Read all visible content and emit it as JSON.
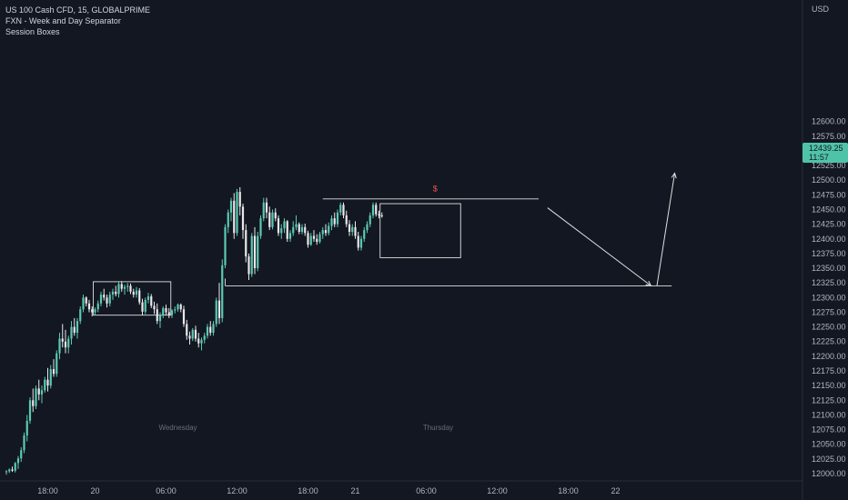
{
  "header": {
    "title": "US 100 Cash CFD, 15, GLOBALPRIME",
    "indicators": [
      "FXN - Week and Day Separator",
      "Session Boxes"
    ]
  },
  "colors": {
    "background": "#131722",
    "up": "#5cc9b2",
    "down": "#e8e8e8",
    "price_tag": "#4fc3a7",
    "text": "#b2b5be",
    "annotation": "#e0e0e0",
    "marker": "#f0524b"
  },
  "chart_data": {
    "type": "candlestick",
    "symbol": "US 100 Cash CFD",
    "interval": "15",
    "currency": "USD",
    "ylim": [
      11990,
      12650
    ],
    "y_ticks": [
      12000,
      12025,
      12050,
      12075,
      12100,
      12125,
      12150,
      12175,
      12200,
      12225,
      12250,
      12275,
      12300,
      12325,
      12350,
      12375,
      12400,
      12425,
      12450,
      12475,
      12500,
      12525,
      12550,
      12575,
      12600
    ],
    "y_tick_labels": [
      "12000.00",
      "12025.00",
      "12050.00",
      "12075.00",
      "12100.00",
      "12125.00",
      "12150.00",
      "12175.00",
      "12200.00",
      "12225.00",
      "12250.00",
      "12275.00",
      "12300.00",
      "12325.00",
      "12350.00",
      "12375.00",
      "12400.00",
      "12425.00",
      "12450.00",
      "12475.00",
      "12500.00",
      "12525.00",
      "12550.00",
      "12575.00",
      "12600.00"
    ],
    "x_ticks": [
      {
        "label": "18:00",
        "bar": 14
      },
      {
        "label": "20",
        "bar": 30
      },
      {
        "label": "06:00",
        "bar": 54
      },
      {
        "label": "12:00",
        "bar": 78
      },
      {
        "label": "18:00",
        "bar": 102
      },
      {
        "label": "21",
        "bar": 118
      },
      {
        "label": "06:00",
        "bar": 142
      },
      {
        "label": "12:00",
        "bar": 166
      },
      {
        "label": "18:00",
        "bar": 190
      },
      {
        "label": "22",
        "bar": 206
      }
    ],
    "day_labels": [
      {
        "label": "Wednesday",
        "bar": 58
      },
      {
        "label": "Thursday",
        "bar": 146
      }
    ],
    "last_price": "12439.25",
    "countdown": "11:57",
    "candles": [
      [
        12003,
        12006,
        11998,
        12004
      ],
      [
        12004,
        12009,
        12001,
        12007
      ],
      [
        12007,
        12012,
        12003,
        12005
      ],
      [
        12005,
        12020,
        12002,
        12018
      ],
      [
        12018,
        12030,
        12008,
        12026
      ],
      [
        12026,
        12045,
        12020,
        12040
      ],
      [
        12040,
        12070,
        12035,
        12065
      ],
      [
        12065,
        12100,
        12055,
        12090
      ],
      [
        12090,
        12130,
        12085,
        12125
      ],
      [
        12125,
        12145,
        12105,
        12115
      ],
      [
        12115,
        12150,
        12110,
        12145
      ],
      [
        12145,
        12160,
        12125,
        12135
      ],
      [
        12135,
        12150,
        12120,
        12142
      ],
      [
        12142,
        12165,
        12138,
        12160
      ],
      [
        12160,
        12180,
        12140,
        12150
      ],
      [
        12150,
        12185,
        12145,
        12178
      ],
      [
        12178,
        12195,
        12165,
        12170
      ],
      [
        12170,
        12210,
        12165,
        12205
      ],
      [
        12205,
        12240,
        12195,
        12230
      ],
      [
        12230,
        12255,
        12215,
        12225
      ],
      [
        12225,
        12245,
        12205,
        12215
      ],
      [
        12215,
        12235,
        12205,
        12230
      ],
      [
        12230,
        12260,
        12220,
        12250
      ],
      [
        12250,
        12265,
        12235,
        12240
      ],
      [
        12240,
        12265,
        12230,
        12260
      ],
      [
        12260,
        12285,
        12255,
        12280
      ],
      [
        12280,
        12305,
        12275,
        12300
      ],
      [
        12300,
        12302,
        12285,
        12290
      ],
      [
        12290,
        12296,
        12275,
        12280
      ],
      [
        12280,
        12285,
        12268,
        12275
      ],
      [
        12275,
        12283,
        12270,
        12280
      ],
      [
        12280,
        12295,
        12275,
        12290
      ],
      [
        12290,
        12310,
        12285,
        12305
      ],
      [
        12305,
        12315,
        12295,
        12300
      ],
      [
        12300,
        12305,
        12283,
        12290
      ],
      [
        12290,
        12310,
        12285,
        12305
      ],
      [
        12305,
        12315,
        12296,
        12310
      ],
      [
        12310,
        12320,
        12302,
        12306
      ],
      [
        12306,
        12328,
        12300,
        12323
      ],
      [
        12323,
        12328,
        12310,
        12315
      ],
      [
        12315,
        12322,
        12305,
        12318
      ],
      [
        12318,
        12325,
        12310,
        12320
      ],
      [
        12320,
        12324,
        12306,
        12310
      ],
      [
        12310,
        12315,
        12300,
        12305
      ],
      [
        12305,
        12318,
        12300,
        12312
      ],
      [
        12312,
        12316,
        12288,
        12292
      ],
      [
        12292,
        12298,
        12270,
        12276
      ],
      [
        12276,
        12300,
        12272,
        12296
      ],
      [
        12296,
        12308,
        12290,
        12302
      ],
      [
        12302,
        12306,
        12282,
        12286
      ],
      [
        12286,
        12293,
        12272,
        12280
      ],
      [
        12280,
        12290,
        12255,
        12260
      ],
      [
        12260,
        12275,
        12248,
        12270
      ],
      [
        12270,
        12285,
        12265,
        12282
      ],
      [
        12282,
        12288,
        12270,
        12275
      ],
      [
        12275,
        12282,
        12265,
        12270
      ],
      [
        12270,
        12280,
        12265,
        12278
      ],
      [
        12278,
        12285,
        12273,
        12280
      ],
      [
        12280,
        12290,
        12276,
        12288
      ],
      [
        12288,
        12290,
        12275,
        12280
      ],
      [
        12280,
        12286,
        12250,
        12255
      ],
      [
        12255,
        12262,
        12228,
        12235
      ],
      [
        12235,
        12242,
        12220,
        12230
      ],
      [
        12230,
        12248,
        12226,
        12245
      ],
      [
        12245,
        12252,
        12225,
        12230
      ],
      [
        12230,
        12240,
        12215,
        12222
      ],
      [
        12222,
        12232,
        12210,
        12228
      ],
      [
        12228,
        12240,
        12222,
        12235
      ],
      [
        12235,
        12255,
        12230,
        12250
      ],
      [
        12250,
        12260,
        12235,
        12240
      ],
      [
        12240,
        12260,
        12235,
        12255
      ],
      [
        12255,
        12300,
        12250,
        12295
      ],
      [
        12295,
        12325,
        12255,
        12265
      ],
      [
        12265,
        12365,
        12258,
        12355
      ],
      [
        12355,
        12425,
        12350,
        12420
      ],
      [
        12420,
        12450,
        12410,
        12445
      ],
      [
        12445,
        12470,
        12430,
        12465
      ],
      [
        12465,
        12478,
        12400,
        12410
      ],
      [
        12410,
        12485,
        12405,
        12480
      ],
      [
        12480,
        12488,
        12440,
        12455
      ],
      [
        12455,
        12460,
        12400,
        12415
      ],
      [
        12415,
        12425,
        12360,
        12370
      ],
      [
        12370,
        12375,
        12330,
        12340
      ],
      [
        12340,
        12410,
        12335,
        12405
      ],
      [
        12405,
        12420,
        12340,
        12350
      ],
      [
        12350,
        12412,
        12345,
        12405
      ],
      [
        12405,
        12440,
        12400,
        12435
      ],
      [
        12435,
        12470,
        12430,
        12462
      ],
      [
        12462,
        12470,
        12435,
        12445
      ],
      [
        12445,
        12455,
        12415,
        12420
      ],
      [
        12420,
        12450,
        12416,
        12445
      ],
      [
        12445,
        12452,
        12430,
        12435
      ],
      [
        12435,
        12440,
        12405,
        12410
      ],
      [
        12410,
        12425,
        12400,
        12418
      ],
      [
        12418,
        12435,
        12410,
        12430
      ],
      [
        12430,
        12432,
        12395,
        12400
      ],
      [
        12400,
        12415,
        12395,
        12410
      ],
      [
        12410,
        12430,
        12405,
        12420
      ],
      [
        12420,
        12440,
        12415,
        12425
      ],
      [
        12425,
        12428,
        12408,
        12412
      ],
      [
        12412,
        12425,
        12408,
        12420
      ],
      [
        12420,
        12426,
        12405,
        12410
      ],
      [
        12410,
        12414,
        12385,
        12390
      ],
      [
        12390,
        12410,
        12388,
        12405
      ],
      [
        12405,
        12415,
        12395,
        12400
      ],
      [
        12400,
        12408,
        12390,
        12395
      ],
      [
        12395,
        12412,
        12392,
        12408
      ],
      [
        12408,
        12420,
        12400,
        12415
      ],
      [
        12415,
        12425,
        12405,
        12410
      ],
      [
        12410,
        12428,
        12406,
        12422
      ],
      [
        12422,
        12440,
        12415,
        12435
      ],
      [
        12435,
        12445,
        12420,
        12425
      ],
      [
        12425,
        12450,
        12420,
        12445
      ],
      [
        12445,
        12462,
        12440,
        12458
      ],
      [
        12458,
        12462,
        12435,
        12440
      ],
      [
        12440,
        12448,
        12420,
        12425
      ],
      [
        12425,
        12432,
        12405,
        12412
      ],
      [
        12412,
        12425,
        12405,
        12420
      ],
      [
        12420,
        12430,
        12400,
        12405
      ],
      [
        12405,
        12412,
        12380,
        12385
      ],
      [
        12385,
        12405,
        12380,
        12400
      ],
      [
        12400,
        12420,
        12395,
        12415
      ],
      [
        12415,
        12430,
        12410,
        12425
      ],
      [
        12425,
        12445,
        12420,
        12440
      ],
      [
        12440,
        12462,
        12435,
        12458
      ],
      [
        12458,
        12462,
        12438,
        12442
      ],
      [
        12442,
        12448,
        12435,
        12440
      ],
      [
        12440,
        12445,
        12436,
        12439.25
      ]
    ],
    "session_boxes": [
      {
        "bar_start": 30,
        "bar_end": 55,
        "price_high": 12327,
        "price_low": 12270
      },
      {
        "bar_start": 127,
        "bar_end": 153,
        "price_high": 12460,
        "price_low": 12368
      }
    ],
    "horizontal_lines": [
      {
        "bar_start": 74,
        "bar_end": 225,
        "price": 12320
      },
      {
        "bar_start": 107,
        "bar_end": 154,
        "price": 12468
      },
      {
        "bar_start": 154,
        "bar_end": 180,
        "price": 12468
      }
    ],
    "liquidity_marker": {
      "label": "$",
      "bar": 145,
      "price": 12478
    },
    "projection_arrows": [
      {
        "from_bar": 183,
        "from_price": 12453,
        "to_bar": 218,
        "to_price": 12320
      },
      {
        "from_bar": 220,
        "from_price": 12320,
        "to_bar": 226,
        "to_price": 12512
      }
    ]
  }
}
